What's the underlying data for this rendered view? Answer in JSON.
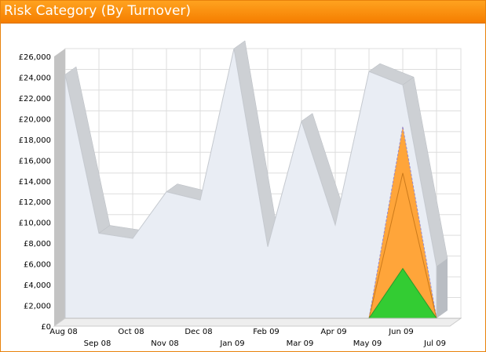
{
  "widget": {
    "title": "Risk Category (By Turnover)"
  },
  "colors": {
    "title_bar": "#f68a0a",
    "series_main": "#e9edf4",
    "series_main_edge": "#cdd0d4",
    "series_orange": "#ffa53a",
    "series_green": "#33cc33",
    "grid": "#dddddd"
  },
  "chart_data": {
    "type": "area",
    "title": "Risk Category (By Turnover)",
    "xlabel": "",
    "ylabel": "",
    "ylim": [
      0,
      26000
    ],
    "grid": true,
    "legend": "none",
    "categories": [
      "Aug 08",
      "Sep 08",
      "Oct 08",
      "Nov 08",
      "Dec 08",
      "Jan 09",
      "Feb 09",
      "Mar 09",
      "Apr 09",
      "May 09",
      "Jun 09",
      "Jul 09"
    ],
    "y_ticks": [
      "£0",
      "£2,000",
      "£4,000",
      "£6,000",
      "£8,000",
      "£10,000",
      "£12,000",
      "£14,000",
      "£16,000",
      "£18,000",
      "£20,000",
      "£22,000",
      "£24,000",
      "£26,000"
    ],
    "series": [
      {
        "x": [
          0,
          1,
          2,
          3,
          4,
          5,
          6,
          7,
          8,
          9,
          10,
          11
        ],
        "values": [
          23500,
          8200,
          7700,
          12200,
          11400,
          26000,
          6900,
          19000,
          9000,
          23800,
          22500,
          5000
        ]
      },
      {
        "x": [
          9,
          10,
          11
        ],
        "values": [
          0,
          18500,
          0
        ]
      },
      {
        "x": [
          9,
          10,
          11
        ],
        "values": [
          0,
          14000,
          0
        ]
      },
      {
        "x": [
          9,
          10,
          11
        ],
        "values": [
          0,
          4800,
          0
        ]
      }
    ]
  }
}
